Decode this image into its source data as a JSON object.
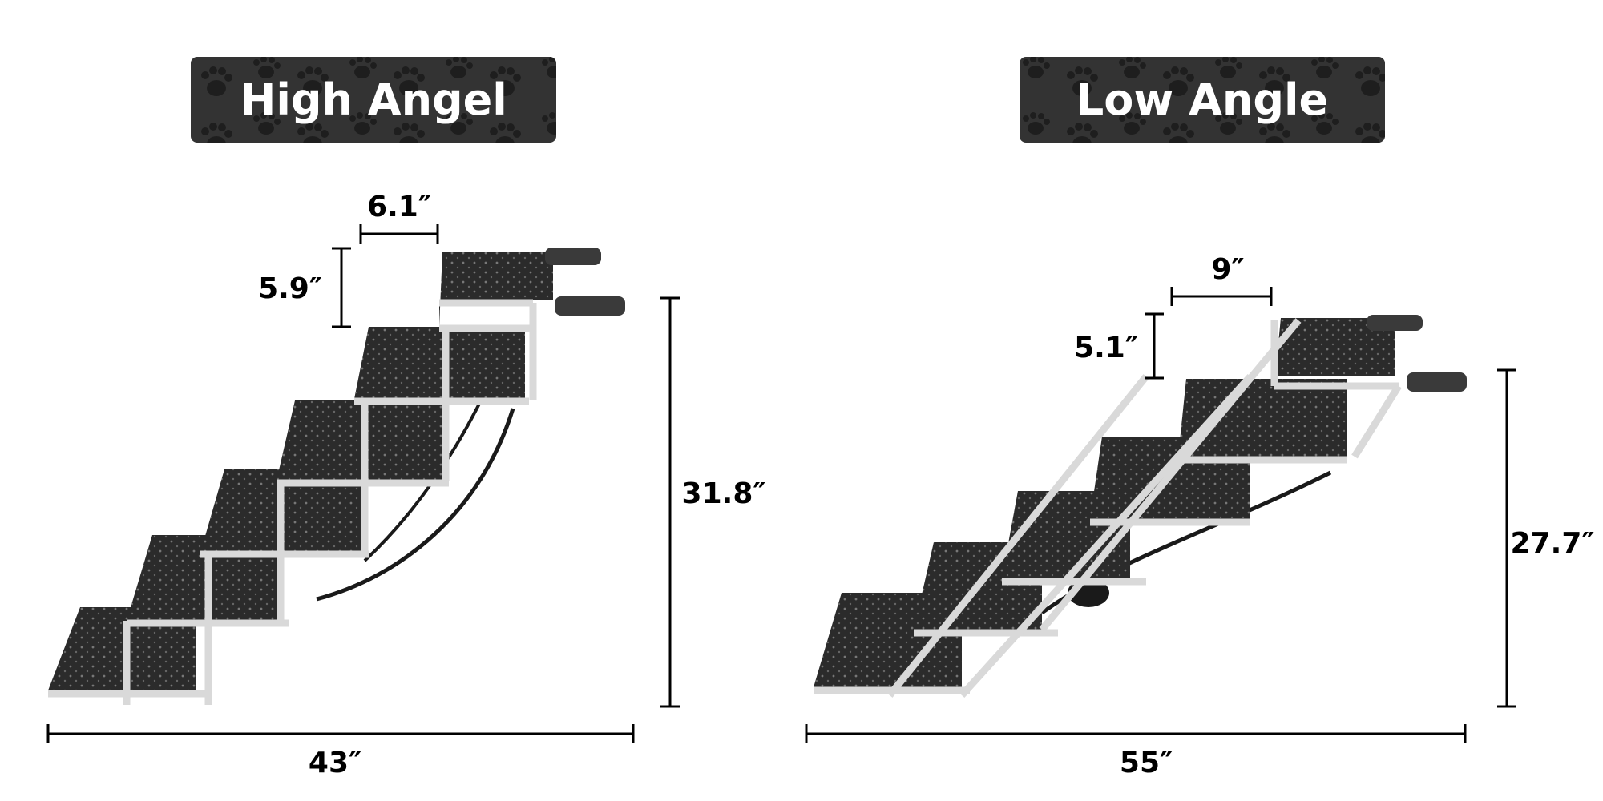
{
  "panels": [
    {
      "id": "high",
      "title": "High Angel",
      "step_width": "6.1″",
      "step_height": "5.9″",
      "total_height": "31.8″",
      "total_length": "43″"
    },
    {
      "id": "low",
      "title": "Low Angle",
      "step_width": "9″",
      "step_height": "5.1″",
      "total_height": "27.7″",
      "total_length": "55″"
    }
  ],
  "colors": {
    "banner": "#333333",
    "paw": "#1e1e1e",
    "tread": "#2a2a2a",
    "frame": "#d9d9d9",
    "handle": "#3a3a3a",
    "ink": "#000000"
  }
}
